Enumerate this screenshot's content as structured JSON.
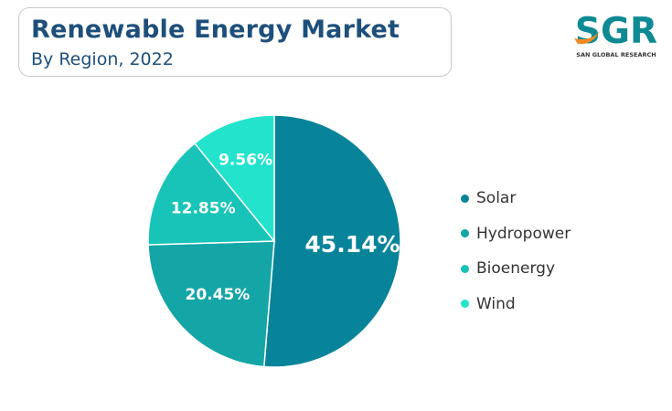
{
  "header": {
    "title": "Renewable Energy Market",
    "subtitle": "By Region, 2022"
  },
  "logo": {
    "text": "SGR",
    "tagline": "SAN GLOBAL RESEARCH"
  },
  "chart_data": {
    "type": "pie",
    "title": "Renewable Energy Market",
    "subtitle": "By Region, 2022",
    "categories": [
      "Solar",
      "Hydropower",
      "Bioenergy",
      "Wind"
    ],
    "values": [
      45.14,
      20.45,
      12.85,
      9.56
    ],
    "labels": [
      "45.14%",
      "20.45%",
      "12.85%",
      "9.56%"
    ],
    "colors": [
      "#08849a",
      "#14a5a7",
      "#18c4b8",
      "#24e3cd"
    ],
    "legend_position": "right"
  }
}
